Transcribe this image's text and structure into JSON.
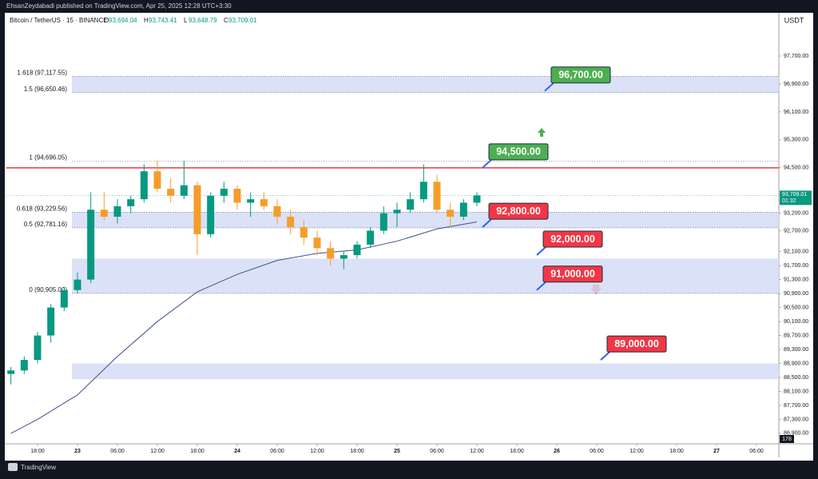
{
  "chart_data": {
    "type": "candlestick",
    "published": "EhsanZeydabadi published on TradingView.com, Apr 25, 2025 12:28 UTC+3:30",
    "symbol": "Bitcoin / TetherUS · 15 · BINANCE",
    "ohlc": [
      {
        "key": "O",
        "label": "93,694.04"
      },
      {
        "key": "H",
        "label": "93,743.41"
      },
      {
        "key": "L",
        "label": "93,648.79"
      },
      {
        "key": "C",
        "label": "93,709.01"
      }
    ],
    "currency": "USDT",
    "brand": "TradingView",
    "up_color": "#089981",
    "down_color": "#f59d2a",
    "x": [
      -4,
      -2,
      0,
      2,
      4,
      6,
      8,
      10,
      12,
      14,
      16,
      18,
      20,
      22,
      24,
      26,
      28,
      30,
      32,
      34,
      36,
      38,
      40,
      42,
      44,
      46,
      48,
      50,
      52,
      54,
      56,
      58,
      60,
      62,
      64,
      66
    ],
    "open": [
      88600,
      88700,
      89000,
      89700,
      90500,
      91000,
      91300,
      93300,
      93100,
      93400,
      93600,
      94400,
      93900,
      93700,
      94000,
      92600,
      93700,
      93900,
      93500,
      93600,
      93400,
      93100,
      92800,
      92500,
      92200,
      91900,
      92000,
      92300,
      92700,
      93200,
      93300,
      93600,
      94100,
      93300,
      93100,
      93500
    ],
    "high": [
      88800,
      89100,
      89800,
      90600,
      91100,
      91500,
      93800,
      93800,
      93600,
      93700,
      94600,
      94700,
      94200,
      94700,
      94100,
      93800,
      94100,
      94000,
      93800,
      93800,
      93600,
      93300,
      93000,
      92700,
      92400,
      92100,
      92400,
      92800,
      93400,
      93500,
      93800,
      94600,
      94300,
      93500,
      93600,
      93800
    ],
    "low": [
      88300,
      88600,
      88900,
      89500,
      90400,
      90900,
      91200,
      93000,
      92900,
      93200,
      93500,
      93800,
      93500,
      93600,
      92000,
      92500,
      93500,
      93300,
      93100,
      93300,
      92900,
      92600,
      92300,
      92000,
      91700,
      91600,
      91900,
      92200,
      92600,
      92800,
      93200,
      93500,
      93200,
      92800,
      93000,
      93400
    ],
    "close": [
      88700,
      89000,
      89700,
      90500,
      91000,
      91300,
      93300,
      93100,
      93400,
      93600,
      94400,
      93900,
      93700,
      94000,
      92600,
      93700,
      93900,
      93500,
      93600,
      93400,
      93100,
      92800,
      92500,
      92200,
      91900,
      92000,
      92300,
      92700,
      93200,
      93300,
      93600,
      94100,
      93300,
      93100,
      93500,
      93709
    ],
    "ma": {
      "color": "#3f4f8f",
      "x": [
        -4,
        0,
        6,
        12,
        18,
        24,
        30,
        36,
        42,
        48,
        54,
        60,
        66
      ],
      "values": [
        86900,
        87300,
        88000,
        89100,
        90100,
        90950,
        91450,
        91850,
        92050,
        92150,
        92400,
        92750,
        92950
      ]
    },
    "xlim": [
      -4.68,
      111.36
    ],
    "xticks": [
      {
        "value": 0,
        "label": "18:00"
      },
      {
        "value": 6,
        "label": "23"
      },
      {
        "value": 12,
        "label": "06:00"
      },
      {
        "value": 18,
        "label": "12:00"
      },
      {
        "value": 24,
        "label": "18:00"
      },
      {
        "value": 30,
        "label": "24"
      },
      {
        "value": 36,
        "label": "06:00"
      },
      {
        "value": 42,
        "label": "12:00"
      },
      {
        "value": 48,
        "label": "18:00"
      },
      {
        "value": 54,
        "label": "25"
      },
      {
        "value": 60,
        "label": "06:00"
      },
      {
        "value": 66,
        "label": "12:00"
      },
      {
        "value": 72,
        "label": "18:00"
      },
      {
        "value": 78,
        "label": "26"
      },
      {
        "value": 84,
        "label": "06:00"
      },
      {
        "value": 90,
        "label": "12:00"
      },
      {
        "value": 96,
        "label": "18:00"
      },
      {
        "value": 102,
        "label": "27"
      },
      {
        "value": 108,
        "label": "06:00"
      }
    ],
    "ylim": [
      86600,
      98890
    ],
    "yticks": [
      {
        "value": 97700,
        "label": "97,700.00"
      },
      {
        "value": 96900,
        "label": "96,900.00"
      },
      {
        "value": 96100,
        "label": "96,100.00"
      },
      {
        "value": 95300,
        "label": "95,300.00"
      },
      {
        "value": 94500,
        "label": "94,500.00"
      },
      {
        "value": 93200,
        "label": "93,200.00"
      },
      {
        "value": 92700,
        "label": "92,700.00"
      },
      {
        "value": 92100,
        "label": "92,100.00"
      },
      {
        "value": 91700,
        "label": "91,700.00"
      },
      {
        "value": 91300,
        "label": "91,300.00"
      },
      {
        "value": 90900,
        "label": "90,900.00"
      },
      {
        "value": 90500,
        "label": "90,500.00"
      },
      {
        "value": 90100,
        "label": "90,100.00"
      },
      {
        "value": 89700,
        "label": "89,700.00"
      },
      {
        "value": 89300,
        "label": "89,300.00"
      },
      {
        "value": 88900,
        "label": "88,900.00"
      },
      {
        "value": 88500,
        "label": "88,500.00"
      },
      {
        "value": 88100,
        "label": "88,100.00"
      },
      {
        "value": 87700,
        "label": "87,700.00"
      },
      {
        "value": 87300,
        "label": "87,300.00"
      },
      {
        "value": 86900,
        "label": "86,900.00"
      }
    ],
    "fib_levels": [
      {
        "value": 97117.55,
        "label": "1.618 (97,117.55)"
      },
      {
        "value": 96650.46,
        "label": "1.5 (96,650.46)"
      },
      {
        "value": 94696.05,
        "label": "1 (94,696.05)"
      },
      {
        "value": 93229.56,
        "label": "0.618 (93,229.56)"
      },
      {
        "value": 92781.16,
        "label": "0.5 (92,781.16)"
      },
      {
        "value": 90905,
        "label": "0 (90,905.00)"
      }
    ],
    "zones": [
      [
        97117.55,
        96650.46
      ],
      [
        93229.56,
        92781.16
      ],
      [
        91900,
        90905
      ],
      [
        88900,
        88450
      ]
    ],
    "zone_color": "#d5dcf5",
    "resistance": {
      "value": 94500,
      "color": "#e53945"
    },
    "annotations": [
      {
        "value": 96700,
        "label": "96,700.00",
        "color": "#4caf50"
      },
      {
        "value": 94500,
        "label": "94,500.00",
        "color": "#4caf50"
      },
      {
        "value": 92800,
        "label": "92,800.00",
        "color": "#f23645"
      },
      {
        "value": 92000,
        "label": "92,000.00",
        "color": "#f23645"
      },
      {
        "value": 91000,
        "label": "91,000.00",
        "color": "#f23645"
      },
      {
        "value": 89000,
        "label": "89,000.00",
        "color": "#f23645"
      }
    ],
    "last_price": {
      "value": 93709.01,
      "label": "93,709.01",
      "color": "#089981"
    },
    "countdown": "01:32",
    "volume_last": 178
  }
}
